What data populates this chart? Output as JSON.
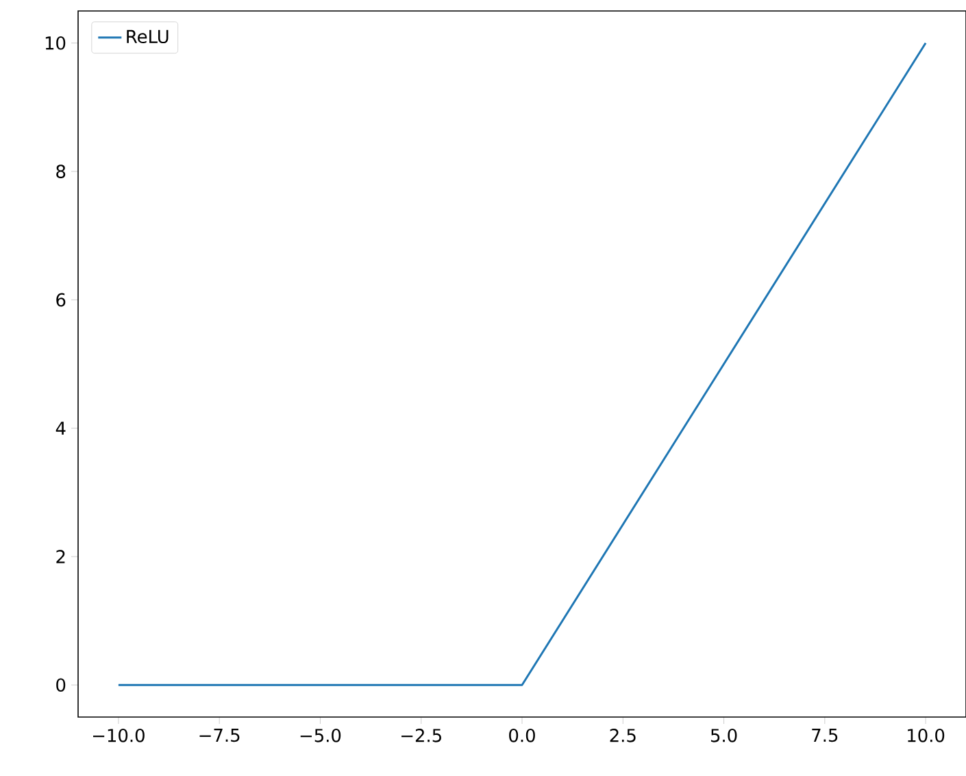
{
  "chart_data": {
    "type": "line",
    "x": [
      -10,
      0,
      10
    ],
    "series": [
      {
        "name": "ReLU",
        "color": "#1f77b4",
        "values": [
          0,
          0,
          10
        ]
      }
    ],
    "xlim": [
      -11,
      11
    ],
    "ylim": [
      -0.5,
      10.5
    ],
    "xticks": [
      {
        "value": -10,
        "label": "−10.0"
      },
      {
        "value": -7.5,
        "label": "−7.5"
      },
      {
        "value": -5,
        "label": "−5.0"
      },
      {
        "value": -2.5,
        "label": "−2.5"
      },
      {
        "value": 0,
        "label": "0.0"
      },
      {
        "value": 2.5,
        "label": "2.5"
      },
      {
        "value": 5,
        "label": "5.0"
      },
      {
        "value": 7.5,
        "label": "7.5"
      },
      {
        "value": 10,
        "label": "10.0"
      }
    ],
    "yticks": [
      0,
      2,
      4,
      6,
      8,
      10
    ],
    "legend": "top left",
    "line_style": "solid",
    "marker": "none"
  }
}
